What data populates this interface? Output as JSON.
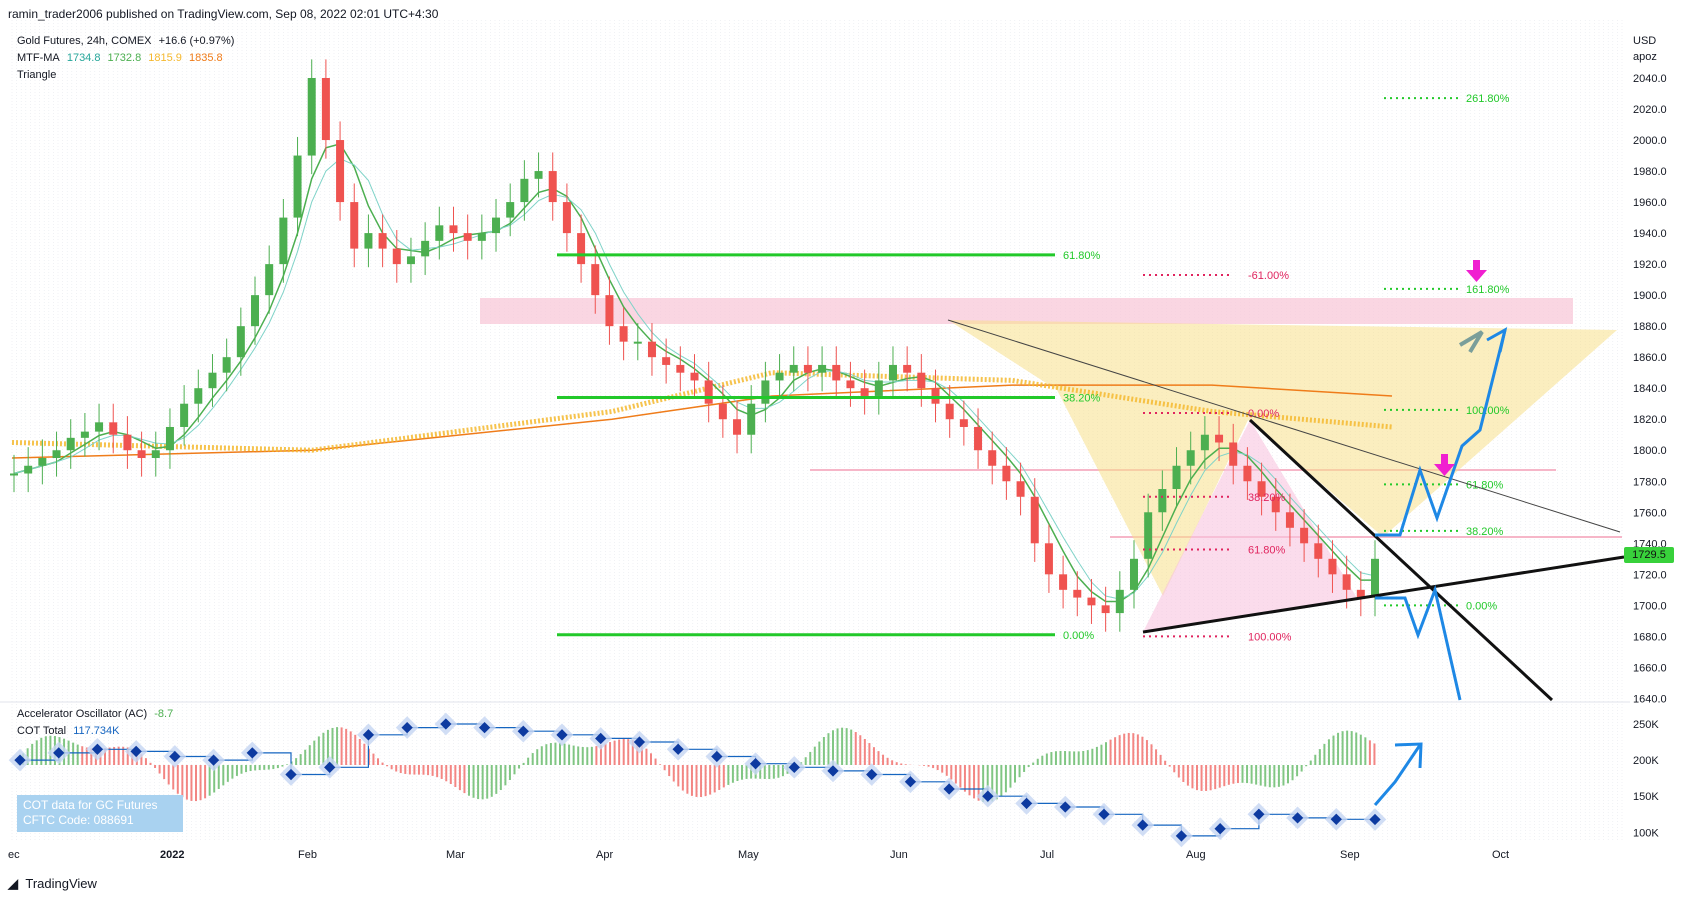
{
  "header": {
    "publisher": "ramin_trader2006 published on TradingView.com, Sep 08, 2022 02:01 UTC+4:30"
  },
  "legend": {
    "symbol": "Gold Futures, 24h, COMEX",
    "change": "+16.6 (+0.97%)",
    "ma_label": "MTF-MA",
    "ma_values": [
      "1734.8",
      "1732.8",
      "1815.9",
      "1835.8"
    ],
    "ma_colors": [
      "#26a69a",
      "#4caf50",
      "#f5b82e",
      "#ef7c1a"
    ],
    "pattern": "Triangle",
    "ac_label": "Accelerator Oscillator (AC)",
    "ac_value": "-8.7",
    "cot_label": "COT Total",
    "cot_value": "117.734K"
  },
  "cot_box": {
    "line1": "COT data for GC Futures",
    "line2": "CFTC Code: 088691"
  },
  "price_axis": {
    "currency": "USD",
    "unit": "apoz",
    "ticks": [
      2040,
      2020,
      2000,
      1980,
      1960,
      1940,
      1920,
      1900,
      1880,
      1860,
      1840,
      1820,
      1800,
      1780,
      1760,
      1740,
      1720,
      1700,
      1680,
      1660,
      1640
    ],
    "tick_labels": [
      "2040.0",
      "2020.0",
      "2000.0",
      "1980.0",
      "1960.0",
      "1940.0",
      "1920.0",
      "1900.0",
      "1880.0",
      "1860.0",
      "1840.0",
      "1820.0",
      "1800.0",
      "1780.0",
      "1760.0",
      "1740.0",
      "1720.0",
      "1700.0",
      "1680.0",
      "1660.0",
      "1640.0"
    ],
    "last_price": "1729.5"
  },
  "indicator_axis": {
    "ticks": [
      250,
      200,
      150,
      100
    ],
    "tick_labels": [
      "250K",
      "200K",
      "150K",
      "100K"
    ]
  },
  "time_axis": {
    "labels": [
      "ec",
      "2022",
      "Feb",
      "Mar",
      "Apr",
      "May",
      "Jun",
      "Jul",
      "Aug",
      "Sep",
      "Oct"
    ]
  },
  "footer": {
    "brand": "TradingView"
  },
  "chart_data": {
    "type": "candlestick",
    "title": "Gold Futures, 24h, COMEX",
    "price_range": [
      1630,
      2060
    ],
    "candles_close_approx": [
      1785,
      1790,
      1795,
      1800,
      1808,
      1812,
      1818,
      1810,
      1800,
      1795,
      1800,
      1815,
      1830,
      1840,
      1850,
      1860,
      1880,
      1900,
      1920,
      1950,
      1990,
      2040,
      2000,
      1960,
      1930,
      1940,
      1930,
      1920,
      1925,
      1935,
      1945,
      1940,
      1935,
      1940,
      1950,
      1960,
      1975,
      1980,
      1960,
      1940,
      1920,
      1900,
      1880,
      1870,
      1870,
      1860,
      1855,
      1850,
      1845,
      1830,
      1820,
      1810,
      1830,
      1845,
      1850,
      1855,
      1850,
      1855,
      1845,
      1840,
      1835,
      1845,
      1855,
      1850,
      1840,
      1830,
      1820,
      1815,
      1800,
      1790,
      1780,
      1770,
      1740,
      1720,
      1710,
      1705,
      1700,
      1695,
      1710,
      1730,
      1760,
      1775,
      1790,
      1800,
      1810,
      1805,
      1790,
      1780,
      1770,
      1760,
      1750,
      1740,
      1730,
      1720,
      1710,
      1705,
      1730
    ],
    "fib_left": [
      {
        "label": "61.80%",
        "price": 1926
      },
      {
        "label": "38.20%",
        "price": 1834
      },
      {
        "label": "0.00%",
        "price": 1681
      }
    ],
    "fib_middle": [
      {
        "label": "-61.00%",
        "price": 1913
      },
      {
        "label": "0.00%",
        "price": 1824
      },
      {
        "label": "38.20%",
        "price": 1770
      },
      {
        "label": "61.80%",
        "price": 1736
      },
      {
        "label": "100.00%",
        "price": 1680
      }
    ],
    "fib_right": [
      {
        "label": "261.80%",
        "price": 2027
      },
      {
        "label": "161.80%",
        "price": 1904
      },
      {
        "label": "100.00%",
        "price": 1826
      },
      {
        "label": "61.80%",
        "price": 1778
      },
      {
        "label": "38.20%",
        "price": 1748
      },
      {
        "label": "0.00%",
        "price": 1700
      }
    ],
    "cot_total_steps": [
      200,
      210,
      215,
      212,
      205,
      200,
      210,
      180,
      190,
      235,
      245,
      250,
      245,
      240,
      235,
      230,
      225,
      215,
      205,
      195,
      190,
      185,
      180,
      170,
      160,
      150,
      140,
      135,
      125,
      110,
      95,
      105,
      125,
      120,
      118,
      117.7
    ]
  },
  "colors": {
    "bull": "#4caf50",
    "bear": "#ef5350",
    "fib_green": "#22c92a",
    "fib_red": "#e0245e",
    "zone_pink": "#f8c8d8",
    "harmonic_yellow": "#f7e08a",
    "blue_projection": "#1e88e5",
    "magenta_arrow": "#f01fd0"
  }
}
